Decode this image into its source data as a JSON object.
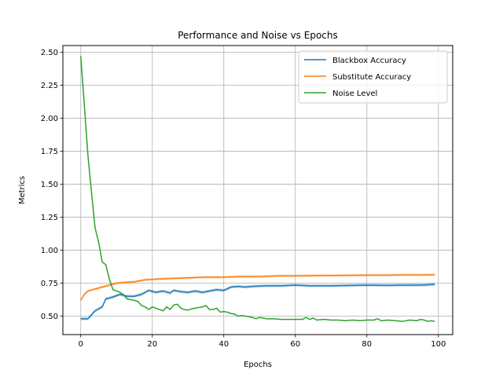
{
  "chart_data": {
    "type": "line",
    "title": "Performance and Noise vs Epochs",
    "xlabel": "Epochs",
    "ylabel": "Metrics",
    "xlim": [
      -5,
      104
    ],
    "ylim": [
      0.36,
      2.55
    ],
    "xticks": [
      0,
      20,
      40,
      60,
      80,
      100
    ],
    "yticks": [
      0.5,
      0.75,
      1.0,
      1.25,
      1.5,
      1.75,
      2.0,
      2.25,
      2.5
    ],
    "xtick_labels": [
      "0",
      "20",
      "40",
      "60",
      "80",
      "100"
    ],
    "ytick_labels": [
      "0.50",
      "0.75",
      "1.00",
      "1.25",
      "1.50",
      "1.75",
      "2.00",
      "2.25",
      "2.50"
    ],
    "grid": true,
    "legend_position": "top-right",
    "series": [
      {
        "name": "Blackbox Accuracy",
        "color": "#1f77b4",
        "band": 0.012,
        "points": [
          [
            0,
            0.48
          ],
          [
            2,
            0.48
          ],
          [
            4,
            0.54
          ],
          [
            6,
            0.57
          ],
          [
            7,
            0.63
          ],
          [
            9,
            0.645
          ],
          [
            11,
            0.665
          ],
          [
            13,
            0.65
          ],
          [
            15,
            0.65
          ],
          [
            17,
            0.665
          ],
          [
            19,
            0.695
          ],
          [
            21,
            0.68
          ],
          [
            23,
            0.69
          ],
          [
            25,
            0.675
          ],
          [
            26,
            0.695
          ],
          [
            28,
            0.685
          ],
          [
            30,
            0.68
          ],
          [
            32,
            0.69
          ],
          [
            34,
            0.68
          ],
          [
            36,
            0.69
          ],
          [
            38,
            0.7
          ],
          [
            40,
            0.695
          ],
          [
            42,
            0.72
          ],
          [
            44,
            0.725
          ],
          [
            46,
            0.72
          ],
          [
            48,
            0.725
          ],
          [
            52,
            0.73
          ],
          [
            56,
            0.73
          ],
          [
            60,
            0.735
          ],
          [
            64,
            0.73
          ],
          [
            70,
            0.73
          ],
          [
            76,
            0.733
          ],
          [
            80,
            0.735
          ],
          [
            86,
            0.733
          ],
          [
            90,
            0.735
          ],
          [
            95,
            0.735
          ],
          [
            99,
            0.74
          ]
        ]
      },
      {
        "name": "Substitute Accuracy",
        "color": "#ff7f0e",
        "band": 0.01,
        "points": [
          [
            0,
            0.62
          ],
          [
            1,
            0.665
          ],
          [
            2,
            0.69
          ],
          [
            4,
            0.705
          ],
          [
            6,
            0.72
          ],
          [
            8,
            0.735
          ],
          [
            10,
            0.75
          ],
          [
            12,
            0.755
          ],
          [
            15,
            0.76
          ],
          [
            18,
            0.775
          ],
          [
            21,
            0.78
          ],
          [
            25,
            0.785
          ],
          [
            30,
            0.79
          ],
          [
            35,
            0.795
          ],
          [
            40,
            0.795
          ],
          [
            45,
            0.8
          ],
          [
            50,
            0.8
          ],
          [
            55,
            0.805
          ],
          [
            60,
            0.805
          ],
          [
            65,
            0.807
          ],
          [
            70,
            0.808
          ],
          [
            75,
            0.809
          ],
          [
            80,
            0.81
          ],
          [
            85,
            0.81
          ],
          [
            90,
            0.812
          ],
          [
            95,
            0.812
          ],
          [
            99,
            0.813
          ]
        ]
      },
      {
        "name": "Noise Level",
        "color": "#2ca02c",
        "band": 0,
        "points": [
          [
            0,
            2.47
          ],
          [
            1,
            2.1
          ],
          [
            2,
            1.72
          ],
          [
            3,
            1.44
          ],
          [
            4,
            1.17
          ],
          [
            5,
            1.06
          ],
          [
            6,
            0.91
          ],
          [
            7,
            0.89
          ],
          [
            8,
            0.78
          ],
          [
            9,
            0.7
          ],
          [
            10,
            0.69
          ],
          [
            11,
            0.68
          ],
          [
            12,
            0.66
          ],
          [
            13,
            0.63
          ],
          [
            14,
            0.625
          ],
          [
            15,
            0.62
          ],
          [
            16,
            0.61
          ],
          [
            17,
            0.58
          ],
          [
            18,
            0.57
          ],
          [
            19,
            0.55
          ],
          [
            20,
            0.57
          ],
          [
            21,
            0.56
          ],
          [
            22,
            0.55
          ],
          [
            23,
            0.54
          ],
          [
            24,
            0.57
          ],
          [
            25,
            0.55
          ],
          [
            26,
            0.585
          ],
          [
            27,
            0.59
          ],
          [
            28,
            0.56
          ],
          [
            29,
            0.55
          ],
          [
            30,
            0.545
          ],
          [
            31,
            0.555
          ],
          [
            32,
            0.56
          ],
          [
            33,
            0.565
          ],
          [
            34,
            0.57
          ],
          [
            35,
            0.58
          ],
          [
            36,
            0.55
          ],
          [
            37,
            0.55
          ],
          [
            38,
            0.56
          ],
          [
            39,
            0.53
          ],
          [
            40,
            0.535
          ],
          [
            41,
            0.53
          ],
          [
            42,
            0.52
          ],
          [
            43,
            0.515
          ],
          [
            44,
            0.5
          ],
          [
            45,
            0.505
          ],
          [
            46,
            0.5
          ],
          [
            47,
            0.495
          ],
          [
            48,
            0.49
          ],
          [
            49,
            0.48
          ],
          [
            50,
            0.49
          ],
          [
            52,
            0.48
          ],
          [
            54,
            0.48
          ],
          [
            56,
            0.475
          ],
          [
            58,
            0.475
          ],
          [
            60,
            0.475
          ],
          [
            62,
            0.475
          ],
          [
            63,
            0.49
          ],
          [
            64,
            0.475
          ],
          [
            65,
            0.485
          ],
          [
            66,
            0.47
          ],
          [
            68,
            0.475
          ],
          [
            70,
            0.47
          ],
          [
            72,
            0.47
          ],
          [
            74,
            0.465
          ],
          [
            76,
            0.47
          ],
          [
            78,
            0.465
          ],
          [
            80,
            0.47
          ],
          [
            82,
            0.47
          ],
          [
            83,
            0.48
          ],
          [
            84,
            0.465
          ],
          [
            86,
            0.47
          ],
          [
            88,
            0.465
          ],
          [
            90,
            0.46
          ],
          [
            92,
            0.47
          ],
          [
            94,
            0.465
          ],
          [
            95,
            0.475
          ],
          [
            96,
            0.47
          ],
          [
            97,
            0.46
          ],
          [
            98,
            0.465
          ],
          [
            99,
            0.46
          ]
        ]
      }
    ]
  }
}
